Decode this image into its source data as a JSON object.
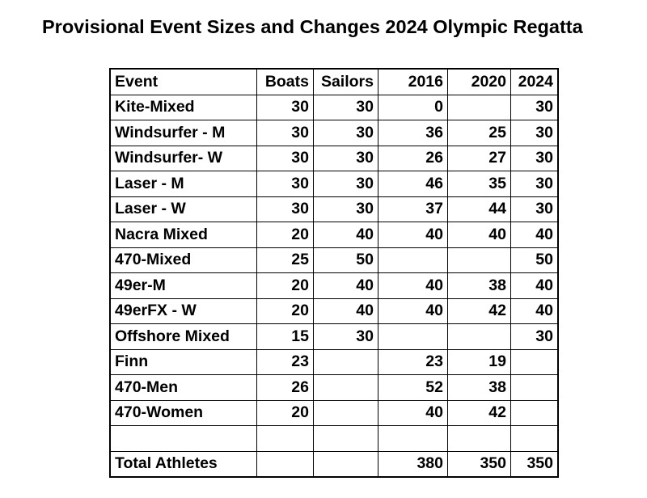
{
  "title": "Provisional Event Sizes and Changes 2024 Olympic Regatta",
  "table": {
    "headers": [
      "Event",
      "Boats",
      "Sailors",
      "2016",
      "2020",
      "2024"
    ],
    "rows": [
      [
        "Kite-Mixed",
        "30",
        "30",
        "0",
        "",
        "30"
      ],
      [
        "Windsurfer - M",
        "30",
        "30",
        "36",
        "25",
        "30"
      ],
      [
        "Windsurfer- W",
        "30",
        "30",
        "26",
        "27",
        "30"
      ],
      [
        "Laser - M",
        "30",
        "30",
        "46",
        "35",
        "30"
      ],
      [
        "Laser - W",
        "30",
        "30",
        "37",
        "44",
        "30"
      ],
      [
        "Nacra Mixed",
        "20",
        "40",
        "40",
        "40",
        "40"
      ],
      [
        "470-Mixed",
        "25",
        "50",
        "",
        "",
        "50"
      ],
      [
        "49er-M",
        "20",
        "40",
        "40",
        "38",
        "40"
      ],
      [
        "49erFX - W",
        "20",
        "40",
        "40",
        "42",
        "40"
      ],
      [
        "Offshore Mixed",
        "15",
        "30",
        "",
        "",
        "30"
      ],
      [
        "Finn",
        "23",
        "",
        "23",
        "19",
        ""
      ],
      [
        "470-Men",
        "26",
        "",
        "52",
        "38",
        ""
      ],
      [
        "470-Women",
        "20",
        "",
        "40",
        "42",
        ""
      ],
      [
        "",
        "",
        "",
        "",
        "",
        ""
      ],
      [
        "Total Athletes",
        "",
        "",
        "380",
        "350",
        "350"
      ]
    ]
  }
}
